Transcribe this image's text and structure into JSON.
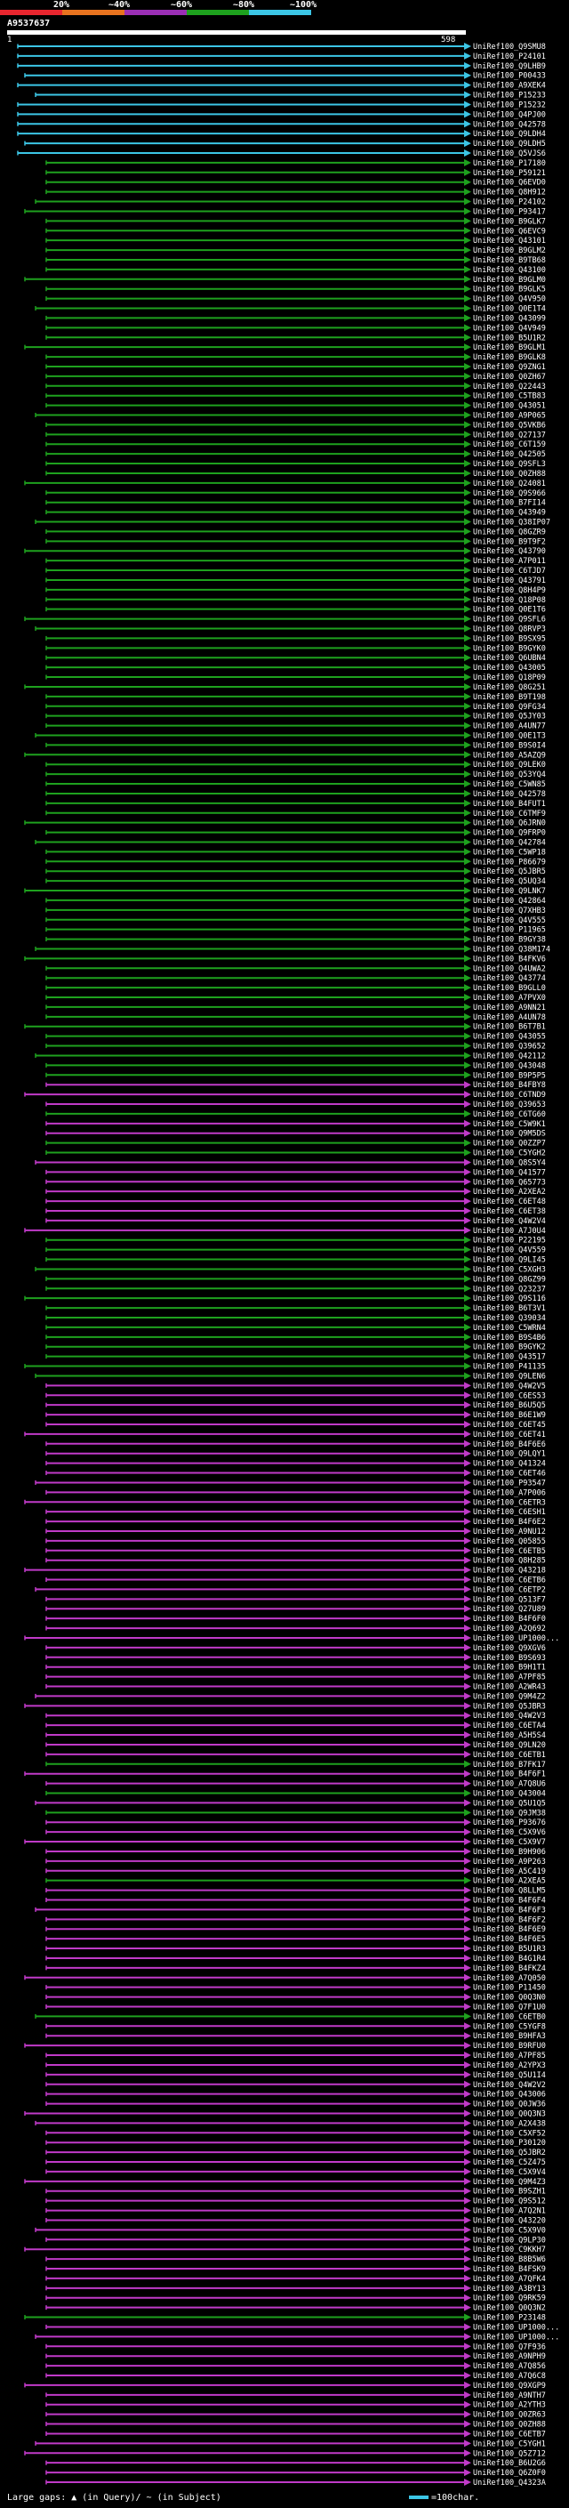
{
  "header": {
    "scale_labels": [
      "20%",
      "~40%",
      "~60%",
      "~80%",
      "~100%"
    ],
    "scale_colors": [
      "#e8262f",
      "#e8731f",
      "#9b2fb5",
      "#1ea11e",
      "#3cc6e6"
    ],
    "accession": "A9537637",
    "query_start": "1",
    "query_end": "598"
  },
  "colors": {
    "cyan": "#3cc6e6",
    "green": "#1ea11e",
    "magenta": "#c03ac8",
    "label": "#ffffff"
  },
  "hits": [
    {
      "label": "UniRef100_Q9SMU8",
      "color": "cyan"
    },
    {
      "label": "UniRef100_P24101",
      "color": "cyan"
    },
    {
      "label": "UniRef100_Q9LHB9",
      "color": "cyan"
    },
    {
      "label": "UniRef100_P00433",
      "color": "cyan"
    },
    {
      "label": "UniRef100_A9XEK4",
      "color": "cyan"
    },
    {
      "label": "UniRef100_P15233",
      "color": "cyan"
    },
    {
      "label": "UniRef100_P15232",
      "color": "cyan"
    },
    {
      "label": "UniRef100_Q4PJ00",
      "color": "cyan"
    },
    {
      "label": "UniRef100_Q42578",
      "color": "cyan"
    },
    {
      "label": "UniRef100_Q9LDH4",
      "color": "cyan"
    },
    {
      "label": "UniRef100_Q9LDH5",
      "color": "cyan"
    },
    {
      "label": "UniRef100_Q5VJS6",
      "color": "cyan"
    },
    {
      "label": "UniRef100_P17180",
      "color": "green"
    },
    {
      "label": "UniRef100_P59121",
      "color": "green"
    },
    {
      "label": "UniRef100_Q6EVD0",
      "color": "green"
    },
    {
      "label": "UniRef100_Q8H912",
      "color": "green"
    },
    {
      "label": "UniRef100_P24102",
      "color": "green"
    },
    {
      "label": "UniRef100_P93417",
      "color": "green"
    },
    {
      "label": "UniRef100_B9GLK7",
      "color": "green"
    },
    {
      "label": "UniRef100_Q6EVC9",
      "color": "green"
    },
    {
      "label": "UniRef100_Q43101",
      "color": "green"
    },
    {
      "label": "UniRef100_B9GLM2",
      "color": "green"
    },
    {
      "label": "UniRef100_B9TB68",
      "color": "green"
    },
    {
      "label": "UniRef100_Q43100",
      "color": "green"
    },
    {
      "label": "UniRef100_B9GLM0",
      "color": "green"
    },
    {
      "label": "UniRef100_B9GLK5",
      "color": "green"
    },
    {
      "label": "UniRef100_Q4V950",
      "color": "green"
    },
    {
      "label": "UniRef100_Q0E1T4",
      "color": "green"
    },
    {
      "label": "UniRef100_Q43099",
      "color": "green"
    },
    {
      "label": "UniRef100_Q4V949",
      "color": "green"
    },
    {
      "label": "UniRef100_B5U1R2",
      "color": "green"
    },
    {
      "label": "UniRef100_B9GLM1",
      "color": "green"
    },
    {
      "label": "UniRef100_B9GLK8",
      "color": "green"
    },
    {
      "label": "UniRef100_Q9ZNG1",
      "color": "green"
    },
    {
      "label": "UniRef100_Q0ZH67",
      "color": "green"
    },
    {
      "label": "UniRef100_Q22443",
      "color": "green"
    },
    {
      "label": "UniRef100_C5TB83",
      "color": "green"
    },
    {
      "label": "UniRef100_Q43051",
      "color": "green"
    },
    {
      "label": "UniRef100_A9P065",
      "color": "green"
    },
    {
      "label": "UniRef100_Q5VKB6",
      "color": "green"
    },
    {
      "label": "UniRef100_Q27137",
      "color": "green"
    },
    {
      "label": "UniRef100_C6T159",
      "color": "green"
    },
    {
      "label": "UniRef100_Q42505",
      "color": "green"
    },
    {
      "label": "UniRef100_Q9SFL3",
      "color": "green"
    },
    {
      "label": "UniRef100_Q0ZH88",
      "color": "green"
    },
    {
      "label": "UniRef100_Q24081",
      "color": "green"
    },
    {
      "label": "UniRef100_Q9S966",
      "color": "green"
    },
    {
      "label": "UniRef100_B7FI14",
      "color": "green"
    },
    {
      "label": "UniRef100_Q43949",
      "color": "green"
    },
    {
      "label": "UniRef100_Q38IP07",
      "color": "green"
    },
    {
      "label": "UniRef100_Q8GZR9",
      "color": "green"
    },
    {
      "label": "UniRef100_B9T9F2",
      "color": "green"
    },
    {
      "label": "UniRef100_Q43790",
      "color": "green"
    },
    {
      "label": "UniRef100_A7P011",
      "color": "green"
    },
    {
      "label": "UniRef100_C6TJD7",
      "color": "green"
    },
    {
      "label": "UniRef100_Q43791",
      "color": "green"
    },
    {
      "label": "UniRef100_Q8H4P9",
      "color": "green"
    },
    {
      "label": "UniRef100_Q18P08",
      "color": "green"
    },
    {
      "label": "UniRef100_Q0E1T6",
      "color": "green"
    },
    {
      "label": "UniRef100_Q9SFL6",
      "color": "green"
    },
    {
      "label": "UniRef100_Q8RVP3",
      "color": "green"
    },
    {
      "label": "UniRef100_B9SX95",
      "color": "green"
    },
    {
      "label": "UniRef100_B9GYK0",
      "color": "green"
    },
    {
      "label": "UniRef100_Q6UBN4",
      "color": "green"
    },
    {
      "label": "UniRef100_Q43005",
      "color": "green"
    },
    {
      "label": "UniRef100_Q18P09",
      "color": "green"
    },
    {
      "label": "UniRef100_Q8G251",
      "color": "green"
    },
    {
      "label": "UniRef100_B9T198",
      "color": "green"
    },
    {
      "label": "UniRef100_Q9FG34",
      "color": "green"
    },
    {
      "label": "UniRef100_Q5JY03",
      "color": "green"
    },
    {
      "label": "UniRef100_A4UN77",
      "color": "green"
    },
    {
      "label": "UniRef100_Q0E1T3",
      "color": "green"
    },
    {
      "label": "UniRef100_B9S0I4",
      "color": "green"
    },
    {
      "label": "UniRef100_A5AZQ9",
      "color": "green"
    },
    {
      "label": "UniRef100_Q9LEK0",
      "color": "green"
    },
    {
      "label": "UniRef100_Q53YQ4",
      "color": "green"
    },
    {
      "label": "UniRef100_C5WN85",
      "color": "green"
    },
    {
      "label": "UniRef100_Q42578",
      "color": "green"
    },
    {
      "label": "UniRef100_B4FUT1",
      "color": "green"
    },
    {
      "label": "UniRef100_C6TMF9",
      "color": "green"
    },
    {
      "label": "UniRef100_Q6JRN0",
      "color": "green"
    },
    {
      "label": "UniRef100_Q9FRP0",
      "color": "green"
    },
    {
      "label": "UniRef100_Q42784",
      "color": "green"
    },
    {
      "label": "UniRef100_C5WP18",
      "color": "green"
    },
    {
      "label": "UniRef100_P86679",
      "color": "green"
    },
    {
      "label": "UniRef100_Q5JBR5",
      "color": "green"
    },
    {
      "label": "UniRef100_Q5UQ34",
      "color": "green"
    },
    {
      "label": "UniRef100_Q9LNK7",
      "color": "green"
    },
    {
      "label": "UniRef100_Q42864",
      "color": "green"
    },
    {
      "label": "UniRef100_Q7XHB3",
      "color": "green"
    },
    {
      "label": "UniRef100_Q4V555",
      "color": "green"
    },
    {
      "label": "UniRef100_P11965",
      "color": "green"
    },
    {
      "label": "UniRef100_B9GY38",
      "color": "green"
    },
    {
      "label": "UniRef100_Q38M174",
      "color": "green"
    },
    {
      "label": "UniRef100_B4FKV6",
      "color": "green"
    },
    {
      "label": "UniRef100_Q4UWA2",
      "color": "green"
    },
    {
      "label": "UniRef100_Q43774",
      "color": "green"
    },
    {
      "label": "UniRef100_B9GLL0",
      "color": "green"
    },
    {
      "label": "UniRef100_A7PVX0",
      "color": "green"
    },
    {
      "label": "UniRef100_A9NN21",
      "color": "green"
    },
    {
      "label": "UniRef100_A4UN78",
      "color": "green"
    },
    {
      "label": "UniRef100_B6T7B1",
      "color": "green"
    },
    {
      "label": "UniRef100_Q43055",
      "color": "green"
    },
    {
      "label": "UniRef100_Q39652",
      "color": "green"
    },
    {
      "label": "UniRef100_Q42112",
      "color": "green"
    },
    {
      "label": "UniRef100_Q43048",
      "color": "green"
    },
    {
      "label": "UniRef100_B9P5P5",
      "color": "green"
    },
    {
      "label": "UniRef100_B4FBY8",
      "color": "magenta"
    },
    {
      "label": "UniRef100_C6TND9",
      "color": "magenta"
    },
    {
      "label": "UniRef100_Q39653",
      "color": "magenta"
    },
    {
      "label": "UniRef100_C6TG60",
      "color": "green"
    },
    {
      "label": "UniRef100_C5W9K1",
      "color": "magenta"
    },
    {
      "label": "UniRef100_Q9M5DS",
      "color": "magenta"
    },
    {
      "label": "UniRef100_Q0ZZP7",
      "color": "green"
    },
    {
      "label": "UniRef100_C5YGH2",
      "color": "green"
    },
    {
      "label": "UniRef100_Q8S5Y4",
      "color": "magenta"
    },
    {
      "label": "UniRef100_Q41577",
      "color": "magenta"
    },
    {
      "label": "UniRef100_Q65773",
      "color": "magenta"
    },
    {
      "label": "UniRef100_A2XEA2",
      "color": "magenta"
    },
    {
      "label": "UniRef100_C6ET48",
      "color": "magenta"
    },
    {
      "label": "UniRef100_C6ET38",
      "color": "magenta"
    },
    {
      "label": "UniRef100_Q4W2V4",
      "color": "magenta"
    },
    {
      "label": "UniRef100_A7J0U4",
      "color": "magenta"
    },
    {
      "label": "UniRef100_P22195",
      "color": "green"
    },
    {
      "label": "UniRef100_Q4V559",
      "color": "green"
    },
    {
      "label": "UniRef100_Q9LI45",
      "color": "green"
    },
    {
      "label": "UniRef100_C5XGH3",
      "color": "green"
    },
    {
      "label": "UniRef100_Q8GZ99",
      "color": "green"
    },
    {
      "label": "UniRef100_Q23237",
      "color": "green"
    },
    {
      "label": "UniRef100_Q9S116",
      "color": "green"
    },
    {
      "label": "UniRef100_B6T3V1",
      "color": "green"
    },
    {
      "label": "UniRef100_Q39034",
      "color": "green"
    },
    {
      "label": "UniRef100_C5WRN4",
      "color": "green"
    },
    {
      "label": "UniRef100_B9S4B6",
      "color": "green"
    },
    {
      "label": "UniRef100_B9GYK2",
      "color": "green"
    },
    {
      "label": "UniRef100_Q43517",
      "color": "green"
    },
    {
      "label": "UniRef100_P41135",
      "color": "green"
    },
    {
      "label": "UniRef100_Q9LEN6",
      "color": "green"
    },
    {
      "label": "UniRef100_Q4W2V5",
      "color": "magenta"
    },
    {
      "label": "UniRef100_C6ES53",
      "color": "magenta"
    },
    {
      "label": "UniRef100_B6U5Q5",
      "color": "magenta"
    },
    {
      "label": "UniRef100_B6E1W9",
      "color": "magenta"
    },
    {
      "label": "UniRef100_C6ET45",
      "color": "magenta"
    },
    {
      "label": "UniRef100_C6ET41",
      "color": "magenta"
    },
    {
      "label": "UniRef100_B4F6E6",
      "color": "magenta"
    },
    {
      "label": "UniRef100_Q9LQY1",
      "color": "magenta"
    },
    {
      "label": "UniRef100_Q41324",
      "color": "magenta"
    },
    {
      "label": "UniRef100_C6ET46",
      "color": "magenta"
    },
    {
      "label": "UniRef100_P93547",
      "color": "magenta"
    },
    {
      "label": "UniRef100_A7P006",
      "color": "magenta"
    },
    {
      "label": "UniRef100_C6ETR3",
      "color": "magenta"
    },
    {
      "label": "UniRef100_C6ESH1",
      "color": "magenta"
    },
    {
      "label": "UniRef100_B4F6E2",
      "color": "magenta"
    },
    {
      "label": "UniRef100_A9NU12",
      "color": "magenta"
    },
    {
      "label": "UniRef100_Q05855",
      "color": "magenta"
    },
    {
      "label": "UniRef100_C6ETB5",
      "color": "magenta"
    },
    {
      "label": "UniRef100_Q8H285",
      "color": "magenta"
    },
    {
      "label": "UniRef100_Q43218",
      "color": "magenta"
    },
    {
      "label": "UniRef100_C6ETB6",
      "color": "magenta"
    },
    {
      "label": "UniRef100_C6ETP2",
      "color": "magenta"
    },
    {
      "label": "UniRef100_Q513F7",
      "color": "magenta"
    },
    {
      "label": "UniRef100_Q27U89",
      "color": "magenta"
    },
    {
      "label": "UniRef100_B4F6F0",
      "color": "magenta"
    },
    {
      "label": "UniRef100_A2Q692",
      "color": "magenta"
    },
    {
      "label": "UniRef100_UP1000...",
      "color": "magenta"
    },
    {
      "label": "UniRef100_Q9XGV6",
      "color": "magenta"
    },
    {
      "label": "UniRef100_B9S693",
      "color": "magenta"
    },
    {
      "label": "UniRef100_B9H1T1",
      "color": "magenta"
    },
    {
      "label": "UniRef100_A7PF85",
      "color": "magenta"
    },
    {
      "label": "UniRef100_A2WR43",
      "color": "magenta"
    },
    {
      "label": "UniRef100_Q9M4Z2",
      "color": "magenta"
    },
    {
      "label": "UniRef100_Q5JBR3",
      "color": "magenta"
    },
    {
      "label": "UniRef100_Q4W2V3",
      "color": "magenta"
    },
    {
      "label": "UniRef100_C6ETA4",
      "color": "magenta"
    },
    {
      "label": "UniRef100_A5H5S4",
      "color": "magenta"
    },
    {
      "label": "UniRef100_Q9LN20",
      "color": "magenta"
    },
    {
      "label": "UniRef100_C6ETB1",
      "color": "magenta"
    },
    {
      "label": "UniRef100_B7FK17",
      "color": "green"
    },
    {
      "label": "UniRef100_B4F6F1",
      "color": "magenta"
    },
    {
      "label": "UniRef100_A7Q8U6",
      "color": "magenta"
    },
    {
      "label": "UniRef100_Q43004",
      "color": "green"
    },
    {
      "label": "UniRef100_Q5U1Q5",
      "color": "magenta"
    },
    {
      "label": "UniRef100_Q9JM38",
      "color": "green"
    },
    {
      "label": "UniRef100_P93676",
      "color": "magenta"
    },
    {
      "label": "UniRef100_C5X9V6",
      "color": "magenta"
    },
    {
      "label": "UniRef100_C5X9V7",
      "color": "magenta"
    },
    {
      "label": "UniRef100_B9H906",
      "color": "magenta"
    },
    {
      "label": "UniRef100_A9P263",
      "color": "magenta"
    },
    {
      "label": "UniRef100_A5C419",
      "color": "magenta"
    },
    {
      "label": "UniRef100_A2XEA5",
      "color": "green"
    },
    {
      "label": "UniRef100_Q8LLM5",
      "color": "magenta"
    },
    {
      "label": "UniRef100_B4F6F4",
      "color": "magenta"
    },
    {
      "label": "UniRef100_B4F6F3",
      "color": "magenta"
    },
    {
      "label": "UniRef100_B4F6F2",
      "color": "magenta"
    },
    {
      "label": "UniRef100_B4F6E9",
      "color": "magenta"
    },
    {
      "label": "UniRef100_B4F6E5",
      "color": "magenta"
    },
    {
      "label": "UniRef100_B5U1R3",
      "color": "magenta"
    },
    {
      "label": "UniRef100_B4G1R4",
      "color": "magenta"
    },
    {
      "label": "UniRef100_B4FKZ4",
      "color": "magenta"
    },
    {
      "label": "UniRef100_A7Q050",
      "color": "magenta"
    },
    {
      "label": "UniRef100_P11450",
      "color": "magenta"
    },
    {
      "label": "UniRef100_Q0Q3N0",
      "color": "magenta"
    },
    {
      "label": "UniRef100_Q7F1U0",
      "color": "magenta"
    },
    {
      "label": "UniRef100_C6ETB0",
      "color": "green"
    },
    {
      "label": "UniRef100_C5YGF8",
      "color": "magenta"
    },
    {
      "label": "UniRef100_B9HFA3",
      "color": "magenta"
    },
    {
      "label": "UniRef100_B9RFU0",
      "color": "magenta"
    },
    {
      "label": "UniRef100_A7PF85",
      "color": "magenta"
    },
    {
      "label": "UniRef100_A2YPX3",
      "color": "magenta"
    },
    {
      "label": "UniRef100_Q5U1I4",
      "color": "magenta"
    },
    {
      "label": "UniRef100_Q4W2V2",
      "color": "magenta"
    },
    {
      "label": "UniRef100_Q43006",
      "color": "magenta"
    },
    {
      "label": "UniRef100_Q0JW36",
      "color": "magenta"
    },
    {
      "label": "UniRef100_Q0Q3N3",
      "color": "magenta"
    },
    {
      "label": "UniRef100_A2X438",
      "color": "magenta"
    },
    {
      "label": "UniRef100_C5XF52",
      "color": "magenta"
    },
    {
      "label": "UniRef100_P30120",
      "color": "magenta"
    },
    {
      "label": "UniRef100_Q5JBR2",
      "color": "magenta"
    },
    {
      "label": "UniRef100_C5Z475",
      "color": "magenta"
    },
    {
      "label": "UniRef100_C5X9V4",
      "color": "magenta"
    },
    {
      "label": "UniRef100_Q9M4Z3",
      "color": "magenta"
    },
    {
      "label": "UniRef100_B9SZH1",
      "color": "magenta"
    },
    {
      "label": "UniRef100_Q9S512",
      "color": "magenta"
    },
    {
      "label": "UniRef100_A7Q2N1",
      "color": "magenta"
    },
    {
      "label": "UniRef100_Q43220",
      "color": "magenta"
    },
    {
      "label": "UniRef100_C5X9V0",
      "color": "magenta"
    },
    {
      "label": "UniRef100_Q9LP30",
      "color": "magenta"
    },
    {
      "label": "UniRef100_C9KKH7",
      "color": "magenta"
    },
    {
      "label": "UniRef100_B8B5W6",
      "color": "magenta"
    },
    {
      "label": "UniRef100_B4FSK9",
      "color": "magenta"
    },
    {
      "label": "UniRef100_A7QFK4",
      "color": "magenta"
    },
    {
      "label": "UniRef100_A3BY13",
      "color": "magenta"
    },
    {
      "label": "UniRef100_Q9RK59",
      "color": "magenta"
    },
    {
      "label": "UniRef100_Q0Q3N2",
      "color": "magenta"
    },
    {
      "label": "UniRef100_P23148",
      "color": "green"
    },
    {
      "label": "UniRef100_UP1000...",
      "color": "magenta"
    },
    {
      "label": "UniRef100_UP1000...",
      "color": "magenta"
    },
    {
      "label": "UniRef100_Q7F936",
      "color": "magenta"
    },
    {
      "label": "UniRef100_A9NPH9",
      "color": "magenta"
    },
    {
      "label": "UniRef100_A7Q856",
      "color": "magenta"
    },
    {
      "label": "UniRef100_A7Q6C8",
      "color": "magenta"
    },
    {
      "label": "UniRef100_Q9XGP9",
      "color": "magenta"
    },
    {
      "label": "UniRef100_A9NTH7",
      "color": "magenta"
    },
    {
      "label": "UniRef100_A2YTH3",
      "color": "magenta"
    },
    {
      "label": "UniRef100_Q0ZR63",
      "color": "magenta"
    },
    {
      "label": "UniRef100_Q0ZH88",
      "color": "magenta"
    },
    {
      "label": "UniRef100_C6ETB7",
      "color": "magenta"
    },
    {
      "label": "UniRef100_C5YGH1",
      "color": "magenta"
    },
    {
      "label": "UniRef100_Q5Z712",
      "color": "magenta"
    },
    {
      "label": "UniRef100_B6U2G6",
      "color": "magenta"
    },
    {
      "label": "UniRef100_Q6Z0F0",
      "color": "magenta"
    },
    {
      "label": "UniRef100_Q4323A",
      "color": "magenta"
    }
  ],
  "footer": {
    "gap_legend": "Large gaps: ▲ (in Query)/ ~ (in Subject)",
    "char_legend": "=100char."
  }
}
